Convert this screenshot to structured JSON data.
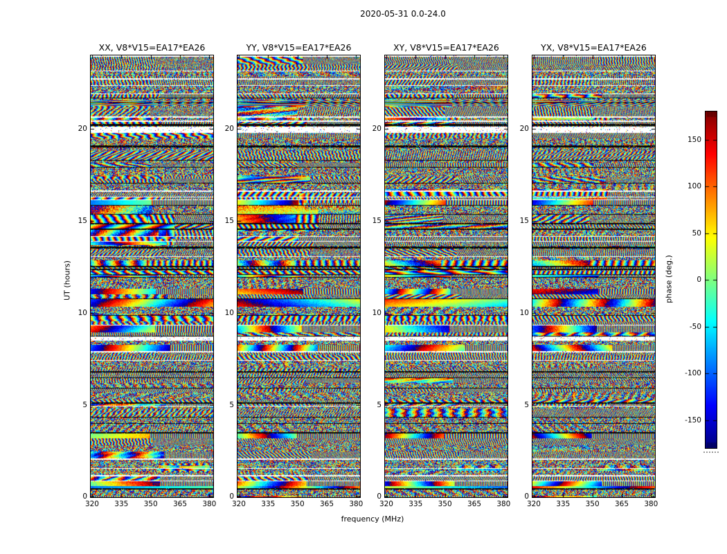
{
  "figure": {
    "background": "#ffffff"
  },
  "chart_data": {
    "type": "heatmap",
    "title": "2020-05-31 0.0-24.0",
    "xlabel": "frequency (MHz)",
    "ylabel": "UT (hours)",
    "x_range": [
      319.3,
      382.0
    ],
    "x_ticks": [
      320,
      335,
      350,
      365,
      380
    ],
    "y_range": [
      0,
      24
    ],
    "y_ticks": [
      0,
      5,
      10,
      15,
      20
    ],
    "colormap": "jet",
    "panels": [
      {
        "pol": "XX",
        "title": "XX, V8*V15=EA17*EA26"
      },
      {
        "pol": "YY",
        "title": "YY, V8*V15=EA17*EA26"
      },
      {
        "pol": "XY",
        "title": "XY, V8*V15=EA17*EA26"
      },
      {
        "pol": "YX",
        "title": "YX, V8*V15=EA17*EA26"
      }
    ],
    "colorbar": {
      "label": "phase (deg.)",
      "range": [
        -180,
        180
      ],
      "ticks": [
        -150,
        -100,
        -50,
        0,
        50,
        100,
        150
      ]
    },
    "content_note": "Waterfall plots of interferometric visibility phase versus frequency (MHz) and UT (hours) for baseline V8*V15=EA17*EA26 on 2020-05-31 0.0-24.0, four polarization products XX/YY/XY/YX; noise-like wrapped phase in jet colors with horizontal scan bands, white/black flagged rows and coherent fringe patches.",
    "texture": {
      "seed": 1337,
      "band_min": 3,
      "band_max": 13,
      "white_sep_prob": 0.3,
      "black_sep_prob": 0.22,
      "noise_prob": 0.45,
      "fringe_prob": 0.4,
      "comb_split_prob": 0.55
    },
    "flag_bands": [
      {
        "ut": [
          22.68,
          22.76
        ],
        "c": "white"
      },
      {
        "ut": [
          20.18,
          20.26
        ],
        "c": "black"
      },
      {
        "ut": [
          19.85,
          20.14
        ],
        "c": "white"
      },
      {
        "ut": [
          19.0,
          19.1
        ],
        "c": "black"
      },
      {
        "ut": [
          16.28,
          16.34
        ],
        "c": "white"
      },
      {
        "ut": [
          13.52,
          13.6
        ],
        "c": "black"
      },
      {
        "ut": [
          12.32,
          12.42
        ],
        "c": "black"
      },
      {
        "ut": [
          8.52,
          8.74
        ],
        "c": "white"
      },
      {
        "ut": [
          5.06,
          5.14
        ],
        "c": "black"
      },
      {
        "ut": [
          2.02,
          2.1
        ],
        "c": "white"
      },
      {
        "ut": [
          0.86,
          0.92
        ],
        "c": "white"
      }
    ],
    "features": [
      {
        "panels": [
          0,
          1,
          2,
          3
        ],
        "ut": [
          21.25,
          21.6
        ],
        "f": [
          0,
          1
        ],
        "bias": 0,
        "strength": 0.8,
        "mode": "laminar"
      },
      {
        "panels": [
          0,
          1,
          2,
          3
        ],
        "ut": [
          20.5,
          20.64
        ],
        "f": [
          0,
          0.62
        ],
        "bias": 60,
        "strength": 0.7
      },
      {
        "panels": [
          0
        ],
        "ut": [
          13.7,
          15.35
        ],
        "f": [
          0,
          0.68
        ],
        "bias": -120,
        "strength": 0.65
      },
      {
        "panels": [
          0
        ],
        "ut": [
          15.35,
          16.3
        ],
        "f": [
          0,
          0.5
        ],
        "bias": -135,
        "strength": 0.55
      },
      {
        "panels": [
          0
        ],
        "ut": [
          14.05,
          14.55
        ],
        "f": [
          0.55,
          1
        ],
        "bias": 55,
        "strength": 0.5
      },
      {
        "panels": [
          1
        ],
        "ut": [
          14.45,
          15.6
        ],
        "f": [
          0,
          0.65
        ],
        "bias": 55,
        "strength": 0.6
      },
      {
        "panels": [
          1
        ],
        "ut": [
          15.6,
          16.75
        ],
        "f": [
          0,
          0.55
        ],
        "bias": 35,
        "strength": 0.55
      },
      {
        "panels": [
          1
        ],
        "ut": [
          16.0,
          16.5
        ],
        "f": [
          0.5,
          0.95
        ],
        "bias": 150,
        "strength": 0.5
      },
      {
        "panels": [
          2
        ],
        "ut": [
          16.35,
          16.75
        ],
        "f": [
          0,
          0.6
        ],
        "bias": -55,
        "strength": 0.7
      },
      {
        "panels": [
          2
        ],
        "ut": [
          16.35,
          16.75
        ],
        "f": [
          0.6,
          1
        ],
        "bias": 140,
        "strength": 0.55
      },
      {
        "panels": [
          3
        ],
        "ut": [
          16.35,
          16.75
        ],
        "f": [
          0,
          0.62
        ],
        "bias": 120,
        "strength": 0.65
      },
      {
        "panels": [
          0,
          1
        ],
        "ut": [
          17.3,
          17.5
        ],
        "f": [
          0,
          1
        ],
        "bias": 165,
        "strength": 0.5
      },
      {
        "panels": [
          0,
          1,
          2,
          3
        ],
        "ut": [
          12.55,
          12.85
        ],
        "f": [
          0,
          1
        ],
        "bias": -25,
        "strength": 0.7
      },
      {
        "panels": [
          0,
          1,
          2,
          3
        ],
        "ut": [
          12.05,
          12.3
        ],
        "f": [
          0,
          1
        ],
        "bias": 15,
        "strength": 0.5
      },
      {
        "panels": [
          0,
          1,
          2,
          3
        ],
        "ut": [
          9.55,
          9.95
        ],
        "f": [
          0,
          1
        ],
        "bias": -45,
        "strength": 0.45
      },
      {
        "panels": [
          0
        ],
        "ut": [
          1.35,
          1.85
        ],
        "f": [
          0.55,
          0.97
        ],
        "bias": -120,
        "strength": 0.65
      },
      {
        "panels": [
          0
        ],
        "ut": [
          1.5,
          1.7
        ],
        "f": [
          0.72,
          0.93
        ],
        "bias": 160,
        "strength": 0.55
      },
      {
        "panels": [
          2
        ],
        "ut": [
          1.35,
          1.75
        ],
        "f": [
          0.58,
          0.95
        ],
        "bias": 40,
        "strength": 0.55
      },
      {
        "panels": [
          3
        ],
        "ut": [
          1.35,
          1.75
        ],
        "f": [
          0.55,
          0.95
        ],
        "bias": 40,
        "strength": 0.5
      }
    ]
  }
}
